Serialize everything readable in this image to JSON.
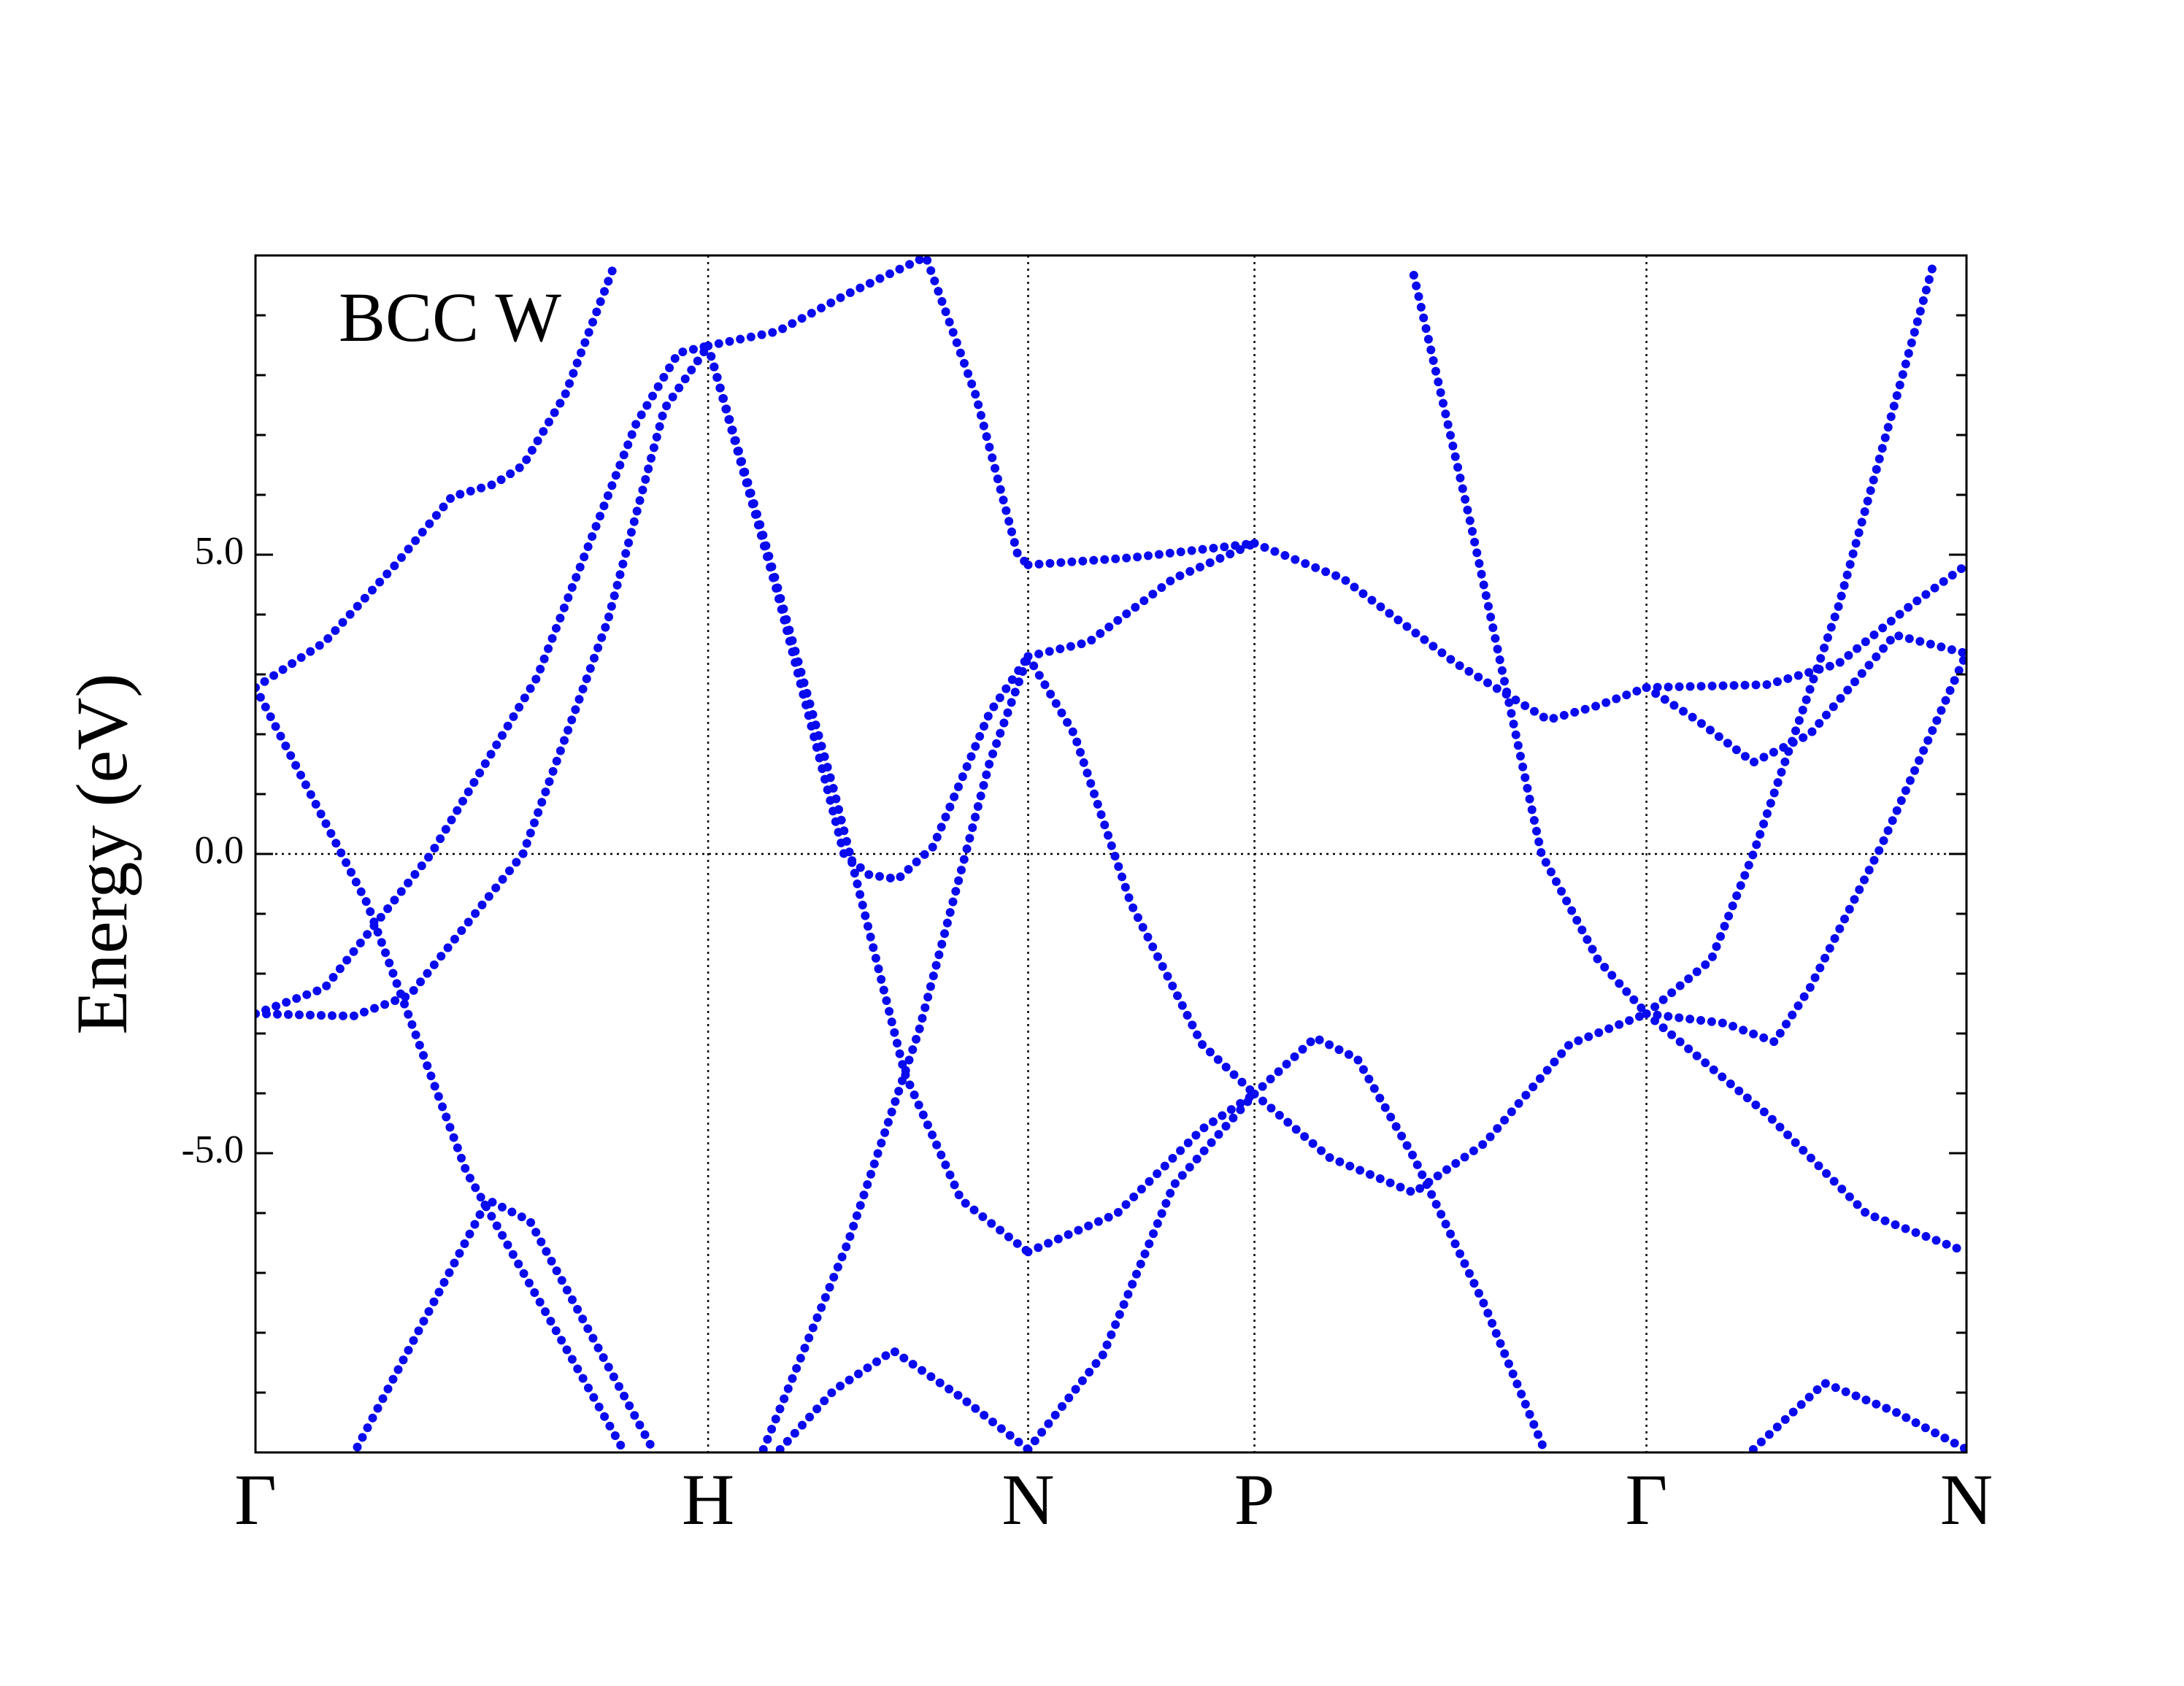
{
  "chart_data": {
    "type": "line",
    "line_style": "dotted",
    "color": "#0a0aee",
    "annotation": "BCC W",
    "y_label": "Energy (eV)",
    "xlim": [
      0,
      3.78
    ],
    "ylim": [
      -10,
      10
    ],
    "xticks": [
      {
        "value": 0,
        "label": "Γ"
      },
      {
        "value": 1,
        "label": "H"
      },
      {
        "value": 1.707,
        "label": "N"
      },
      {
        "value": 2.207,
        "label": "P"
      },
      {
        "value": 3.073,
        "label": "Γ"
      },
      {
        "value": 3.78,
        "label": "N"
      }
    ],
    "yticks": [
      {
        "value": -5,
        "label": "-5.0"
      },
      {
        "value": 0,
        "label": "0.0"
      },
      {
        "value": 5,
        "label": "5.0"
      }
    ],
    "yticks_minor": [
      -9,
      -8,
      -7,
      -6,
      -4,
      -3,
      -2,
      -1,
      1,
      2,
      3,
      4,
      6,
      7,
      8,
      9
    ],
    "x_grid": true,
    "zero_line": true,
    "series": [
      {
        "x": [
          0,
          0.153,
          0.309,
          0.434,
          0.528,
          0.591,
          0.684,
          0.794
        ],
        "values": [
          2.78,
          3.54,
          4.83,
          5.97,
          6.18,
          6.49,
          7.67,
          9.86
        ]
      },
      {
        "x": [
          0,
          0.247,
          0.466,
          0.809
        ],
        "values": [
          2.78,
          -0.83,
          -5.31,
          -9.91
        ]
      },
      {
        "x": [
          0.225,
          0.513,
          0.606,
          0.878
        ],
        "values": [
          -9.91,
          -5.78,
          -6.13,
          -9.95
        ]
      },
      {
        "x": [
          0,
          0.153,
          0.388,
          0.622,
          0.841,
          0.934,
          1
        ],
        "values": [
          -2.67,
          -2.24,
          0,
          2.95,
          7.19,
          8.37,
          8.49
        ]
      },
      {
        "x": [
          0,
          0.216,
          0.341,
          0.591,
          0.778,
          0.903,
          1
        ],
        "values": [
          -2.67,
          -2.71,
          -2.36,
          0,
          3.89,
          7.43,
          8.49
        ]
      },
      {
        "x": [
          1,
          1.153,
          1.309,
          1.481,
          1.591,
          1.684,
          1.707
        ],
        "values": [
          8.49,
          8.73,
          9.36,
          9.98,
          7.67,
          5.0,
          4.83
        ]
      },
      {
        "x": [
          1,
          1.153,
          1.3,
          1.356,
          1.419,
          1.497,
          1.622,
          1.707
        ],
        "values": [
          8.49,
          4.36,
          0,
          -0.35,
          -0.42,
          0.12,
          2.36,
          3.3
        ]
      },
      {
        "x": [
          1,
          1.122,
          1.278,
          1.434,
          1.559,
          1.707
        ],
        "values": [
          8.49,
          5.31,
          1.06,
          -3.66,
          -5.78,
          -6.65
        ]
      },
      {
        "x": [
          1.122,
          1.309,
          1.466,
          1.622,
          1.707
        ],
        "values": [
          -9.95,
          -6.49,
          -2.95,
          1.53,
          3.3
        ]
      },
      {
        "x": [
          1.159,
          1.278,
          1.409,
          1.559,
          1.707
        ],
        "values": [
          -9.95,
          -8.96,
          -8.3,
          -9.08,
          -9.95
        ]
      },
      {
        "x": [
          1.707,
          1.934,
          2.207
        ],
        "values": [
          4.83,
          4.95,
          5.19
        ]
      },
      {
        "x": [
          1.707,
          1.841,
          2.028,
          2.207
        ],
        "values": [
          3.3,
          3.54,
          4.6,
          5.19
        ]
      },
      {
        "x": [
          1.707,
          1.809,
          1.934,
          2.091,
          2.207
        ],
        "values": [
          3.3,
          2.0,
          -0.83,
          -3.18,
          -4.01
        ]
      },
      {
        "x": [
          1.707,
          1.903,
          2.091,
          2.207
        ],
        "values": [
          -6.65,
          -6.01,
          -4.6,
          -4.01
        ]
      },
      {
        "x": [
          1.707,
          1.872,
          2.028,
          2.207
        ],
        "values": [
          -9.95,
          -8.37,
          -5.54,
          -4.01
        ]
      },
      {
        "x": [
          2.207,
          2.403,
          2.653,
          2.856,
          2.966,
          3.073
        ],
        "values": [
          5.19,
          4.6,
          3.18,
          2.24,
          2.48,
          2.78
        ]
      },
      {
        "x": [
          2.207,
          2.341,
          2.434,
          2.559,
          2.716,
          2.847
        ],
        "values": [
          -4.01,
          -3.07,
          -3.42,
          -5.07,
          -7.55,
          -9.95
        ]
      },
      {
        "x": [
          2.207,
          2.372,
          2.559,
          2.716,
          2.903,
          3.073
        ],
        "values": [
          -4.01,
          -5.07,
          -5.66,
          -4.83,
          -3.18,
          -2.67
        ]
      },
      {
        "x": [
          2.559,
          2.684,
          2.841,
          2.966,
          3.073
        ],
        "values": [
          9.67,
          5.54,
          0,
          -1.77,
          -2.67
        ]
      },
      {
        "x": [
          3.073,
          3.341,
          3.497,
          3.653,
          3.78
        ],
        "values": [
          2.78,
          2.83,
          3.18,
          4.13,
          4.83
        ]
      },
      {
        "x": [
          3.073,
          3.184,
          3.309,
          3.434,
          3.622,
          3.78
        ],
        "values": [
          2.78,
          2.24,
          1.53,
          2.0,
          3.66,
          3.35
        ]
      },
      {
        "x": [
          3.073,
          3.247,
          3.356,
          3.434,
          3.591,
          3.78
        ],
        "values": [
          -2.67,
          -2.83,
          -3.14,
          -2.24,
          0.12,
          3.35
        ]
      },
      {
        "x": [
          3.073,
          3.216,
          3.309,
          3.497,
          3.709
        ],
        "values": [
          -2.67,
          -1.77,
          0,
          4.13,
          9.91
        ]
      },
      {
        "x": [
          3.073,
          3.341,
          3.559,
          3.78
        ],
        "values": [
          -2.67,
          -4.36,
          -6.01,
          -6.65
        ]
      },
      {
        "x": [
          3.309,
          3.466,
          3.622,
          3.78
        ],
        "values": [
          -9.95,
          -8.84,
          -9.32,
          -9.95
        ]
      }
    ]
  }
}
